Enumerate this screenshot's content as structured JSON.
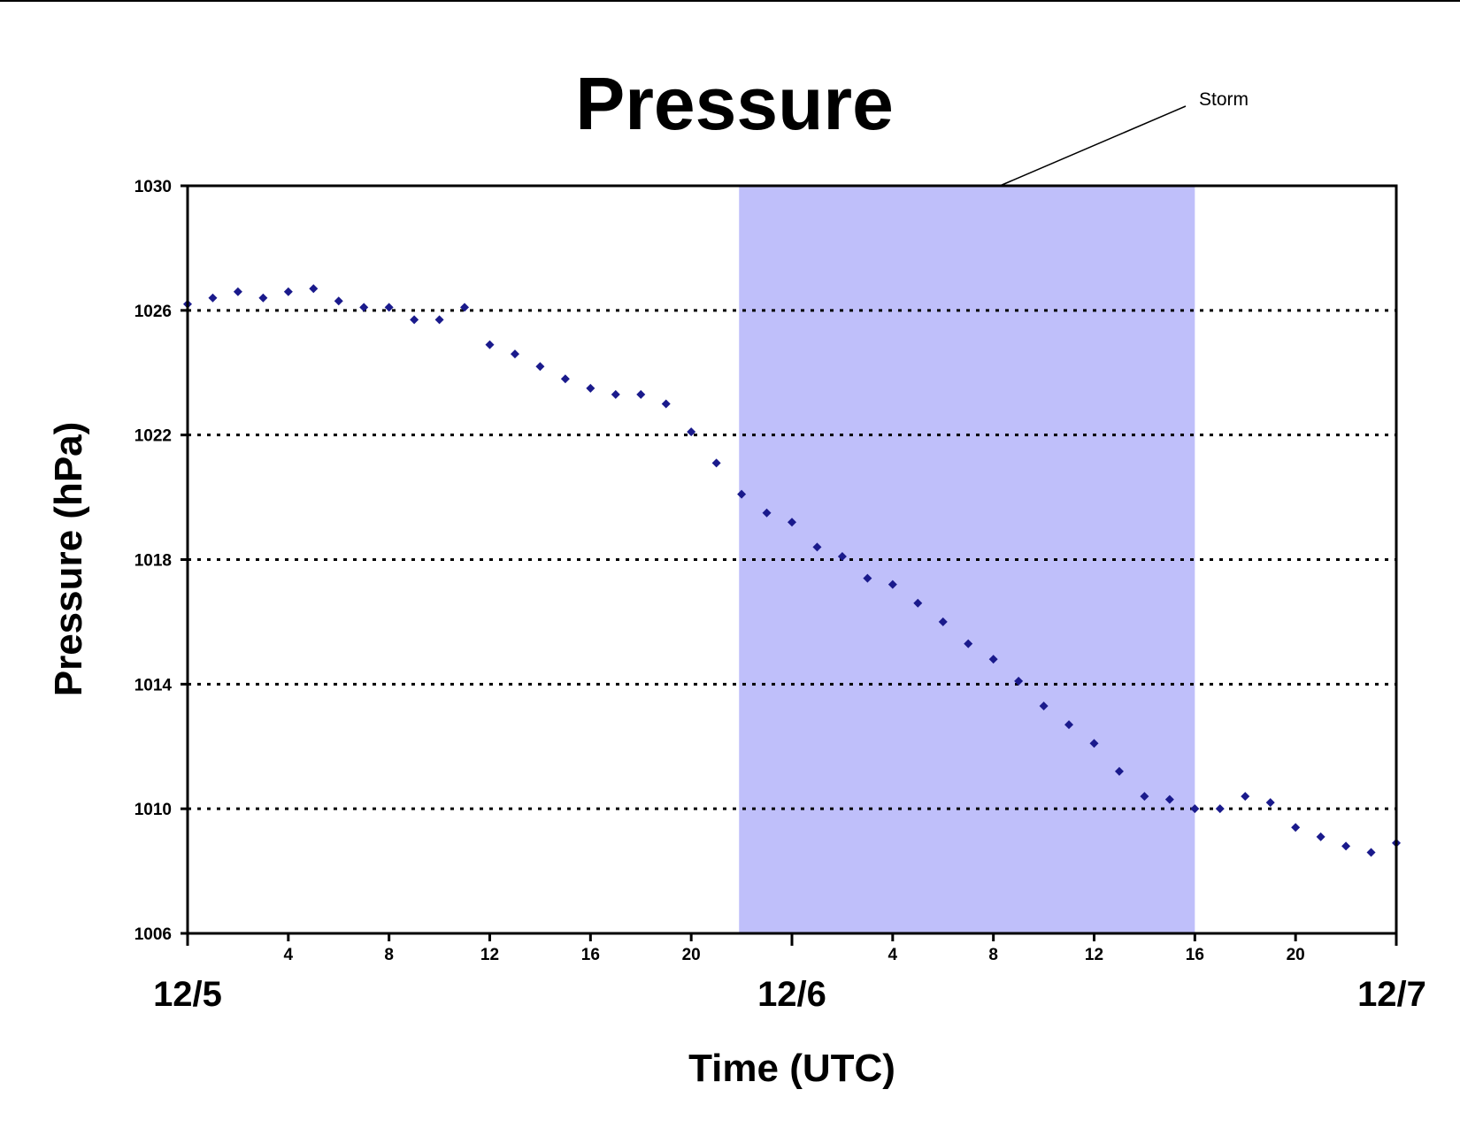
{
  "chart_data": {
    "type": "scatter",
    "title": "Pressure",
    "xlabel": "Time (UTC)",
    "ylabel": "Pressure (hPa)",
    "ylim": [
      1006,
      1030
    ],
    "yticks": [
      1006,
      1010,
      1014,
      1018,
      1022,
      1026,
      1030
    ],
    "xlim_hours": [
      0,
      48
    ],
    "hour_ticks": [
      {
        "hour": 4,
        "label": "4"
      },
      {
        "hour": 8,
        "label": "8"
      },
      {
        "hour": 12,
        "label": "12"
      },
      {
        "hour": 16,
        "label": "16"
      },
      {
        "hour": 20,
        "label": "20"
      },
      {
        "hour": 28,
        "label": "4"
      },
      {
        "hour": 32,
        "label": "8"
      },
      {
        "hour": 36,
        "label": "12"
      },
      {
        "hour": 40,
        "label": "16"
      },
      {
        "hour": 44,
        "label": "20"
      }
    ],
    "day_labels": [
      {
        "hour": 0,
        "label": "12/5"
      },
      {
        "hour": 24,
        "label": "12/6"
      },
      {
        "hour": 48,
        "label": "12/7"
      }
    ],
    "grid": "horizontal dotted",
    "annotation": {
      "text": "Storm",
      "shaded_hours": [
        21.9,
        40
      ]
    },
    "marker_color": "#1a1a8c",
    "shade_color": "#bfbffa",
    "series": [
      {
        "x": [
          0,
          1,
          2,
          3,
          4,
          5,
          6,
          7,
          8,
          9,
          10,
          11,
          12,
          13,
          14,
          15,
          16,
          17,
          18,
          19,
          20,
          21,
          22,
          23,
          24,
          25,
          26,
          27,
          28,
          29,
          30,
          31,
          32,
          33,
          34,
          35,
          36,
          37,
          38,
          39,
          40,
          41,
          42,
          43,
          44,
          45,
          46,
          47,
          48
        ],
        "y": [
          1026.2,
          1026.4,
          1026.6,
          1026.4,
          1026.6,
          1026.7,
          1026.3,
          1026.1,
          1026.1,
          1025.7,
          1025.7,
          1026.1,
          1024.9,
          1024.6,
          1024.2,
          1023.8,
          1023.5,
          1023.3,
          1023.3,
          1023.0,
          1022.1,
          1021.1,
          1020.1,
          1019.5,
          1019.2,
          1018.4,
          1018.1,
          1017.4,
          1017.2,
          1016.6,
          1016.0,
          1015.3,
          1014.8,
          1014.1,
          1013.3,
          1012.7,
          1012.1,
          1011.2,
          1010.4,
          1010.3,
          1010.0,
          1010.0,
          1010.4,
          1010.2,
          1009.4,
          1009.1,
          1008.8,
          1008.6,
          1008.9
        ]
      }
    ]
  }
}
